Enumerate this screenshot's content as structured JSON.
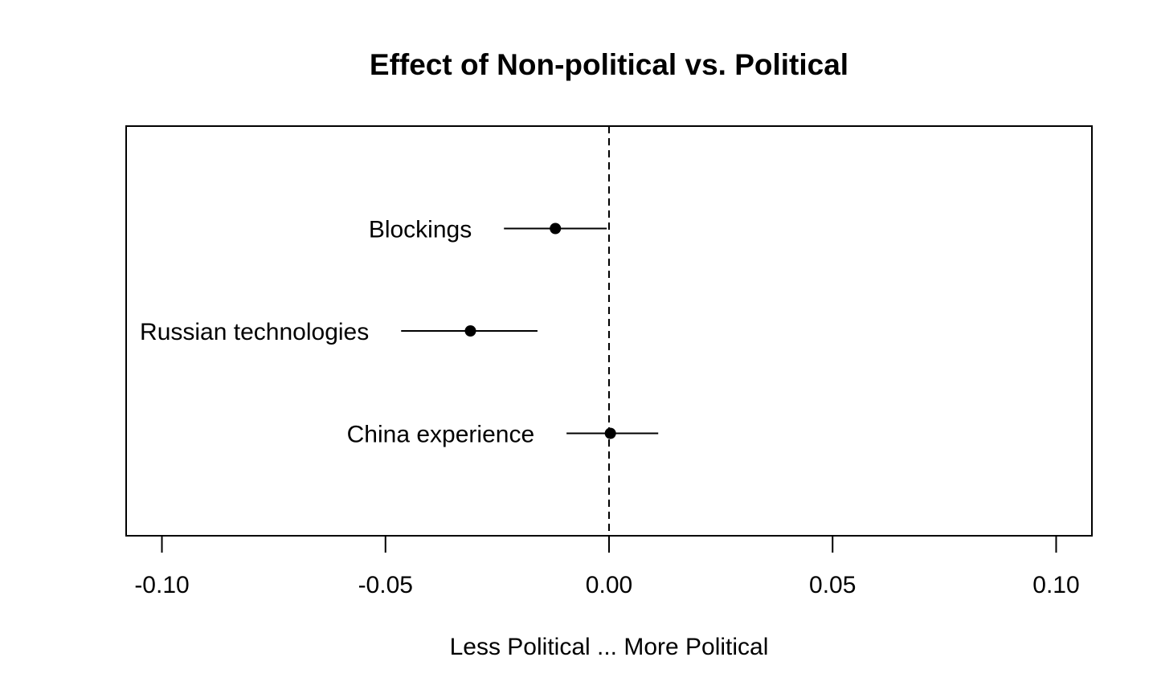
{
  "chart_data": {
    "type": "scatter",
    "subtype": "coefficient-plot",
    "title": "Effect of Non-political vs. Political",
    "xlabel": "Less Political ... More Political",
    "ylabel": "",
    "xlim": [
      -0.108,
      0.108
    ],
    "ylim": [
      0,
      4
    ],
    "xticks": [
      -0.1,
      -0.05,
      0.0,
      0.05,
      0.1
    ],
    "xtick_labels": [
      "-0.10",
      "-0.05",
      "0.00",
      "0.05",
      "0.10"
    ],
    "reference_line": {
      "x": 0.0,
      "style": "dashed"
    },
    "grid": false,
    "legend": "none",
    "color": "#000000",
    "points": [
      {
        "label": "Blockings",
        "y": 3,
        "estimate": -0.012,
        "ci_low": -0.0235,
        "ci_high": -0.0005
      },
      {
        "label": "Russian technologies",
        "y": 2,
        "estimate": -0.031,
        "ci_low": -0.0465,
        "ci_high": -0.016
      },
      {
        "label": "China experience",
        "y": 1,
        "estimate": 0.0003,
        "ci_low": -0.0095,
        "ci_high": 0.011
      }
    ]
  }
}
